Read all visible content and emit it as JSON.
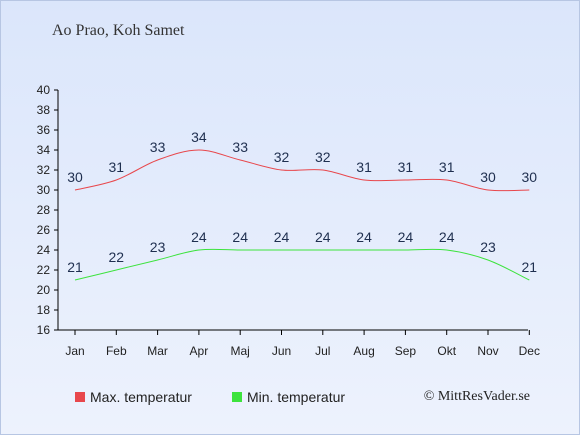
{
  "title": "Ao Prao, Koh Samet",
  "credit": "© MittResVader.se",
  "colors": {
    "max": "#e8474c",
    "min": "#3de33d",
    "axis": "#000000"
  },
  "legend": {
    "max_label": "Max. temperatur",
    "min_label": "Min. temperatur"
  },
  "chart_data": {
    "type": "line",
    "categories": [
      "Jan",
      "Feb",
      "Mar",
      "Apr",
      "Maj",
      "Jun",
      "Jul",
      "Aug",
      "Sep",
      "Okt",
      "Nov",
      "Dec"
    ],
    "series": [
      {
        "name": "Max. temperatur",
        "values": [
          30,
          31,
          33,
          34,
          33,
          32,
          32,
          31,
          31,
          31,
          30,
          30
        ]
      },
      {
        "name": "Min. temperatur",
        "values": [
          21,
          22,
          23,
          24,
          24,
          24,
          24,
          24,
          24,
          24,
          23,
          21
        ]
      }
    ],
    "ylim": [
      16,
      40
    ],
    "yticks": [
      16,
      18,
      20,
      22,
      24,
      26,
      28,
      30,
      32,
      34,
      36,
      38,
      40
    ],
    "grid": false,
    "legend_position": "bottom-left"
  }
}
